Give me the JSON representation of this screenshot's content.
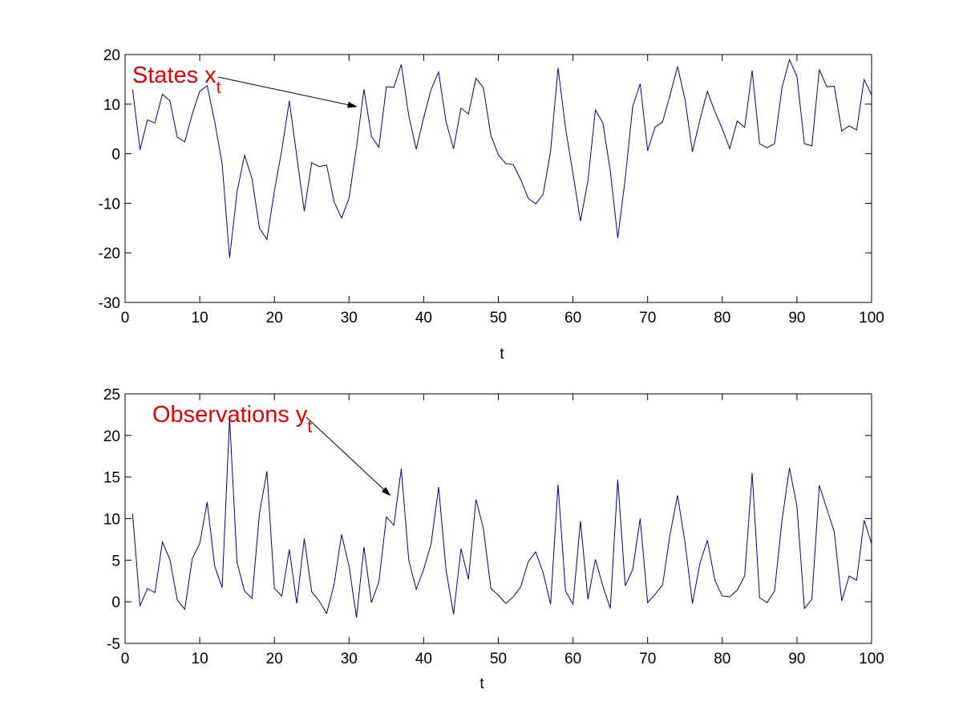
{
  "colors": {
    "line": "#000080",
    "annotation": "#e00000",
    "axes": "#000000",
    "background": "#ffffff"
  },
  "chart_data": [
    {
      "type": "line",
      "xlabel": "t",
      "ylabel": "",
      "xlim": [
        0,
        100
      ],
      "ylim": [
        -30,
        20
      ],
      "xticks": [
        0,
        10,
        20,
        30,
        40,
        50,
        60,
        70,
        80,
        90,
        100
      ],
      "yticks": [
        -30,
        -20,
        -10,
        0,
        10,
        20
      ],
      "grid": false,
      "annotation": {
        "text": "States x",
        "subscript": "t",
        "arrow_to": [
          31,
          9.5
        ]
      },
      "series": [
        {
          "x": [
            1,
            2,
            3,
            4,
            5,
            6,
            7,
            8,
            9,
            10,
            11,
            12,
            13,
            14,
            15,
            16,
            17,
            18,
            19,
            20,
            21,
            22,
            23,
            24,
            25,
            26,
            27,
            28,
            29,
            30,
            31,
            32,
            33,
            34,
            35,
            36,
            37,
            38,
            39,
            40,
            41,
            42,
            43,
            44,
            45,
            46,
            47,
            48,
            49,
            50,
            51,
            52,
            53,
            54,
            55,
            56,
            57,
            58,
            59,
            60,
            61,
            62,
            63,
            64,
            65,
            66,
            67,
            68,
            69,
            70,
            71,
            72,
            73,
            74,
            75,
            76,
            77,
            78,
            79,
            80,
            81,
            82,
            83,
            84,
            85,
            86,
            87,
            88,
            89,
            90,
            91,
            92,
            93,
            94,
            95,
            96,
            97,
            98,
            99,
            100
          ],
          "values": [
            13,
            0.8,
            6.8,
            6.2,
            12,
            10.7,
            3.3,
            2.4,
            8,
            12.6,
            13.7,
            6.5,
            -2,
            -21,
            -7.7,
            -0.3,
            -5,
            -15,
            -17.3,
            -7.5,
            0.8,
            10.7,
            -0.5,
            -11.6,
            -1.8,
            -2.6,
            -2.3,
            -9.7,
            -13,
            -9,
            1.4,
            13,
            3.5,
            1.3,
            13.5,
            13.4,
            18,
            7.7,
            0.9,
            7.3,
            13,
            16.5,
            6.4,
            1,
            9.2,
            8,
            15.2,
            13.3,
            3.7,
            -0.2,
            -2,
            -2.2,
            -5.2,
            -9,
            -10.1,
            -8.2,
            0.5,
            17.3,
            5.2,
            -4,
            -13.6,
            -5.5,
            8.8,
            6.2,
            -3.5,
            -17,
            -5,
            9.5,
            14.1,
            0.6,
            5.4,
            6.4,
            11.8,
            17.6,
            11,
            0.4,
            6.8,
            12.6,
            8.5,
            5,
            1,
            6.6,
            5.3,
            16.8,
            2,
            1.2,
            2,
            13.3,
            19,
            15.6,
            2,
            1.6,
            17,
            13.5,
            13.6,
            4.6,
            5.6,
            4.8,
            15,
            11.8
          ]
        }
      ]
    },
    {
      "type": "line",
      "xlabel": "t",
      "ylabel": "",
      "xlim": [
        0,
        100
      ],
      "ylim": [
        -5,
        25
      ],
      "xticks": [
        0,
        10,
        20,
        30,
        40,
        50,
        60,
        70,
        80,
        90,
        100
      ],
      "yticks": [
        -5,
        0,
        5,
        10,
        15,
        20,
        25
      ],
      "grid": false,
      "annotation": {
        "text": "Observations y",
        "subscript": "t",
        "arrow_to": [
          35.5,
          12.8
        ]
      },
      "series": [
        {
          "x": [
            1,
            2,
            3,
            4,
            5,
            6,
            7,
            8,
            9,
            10,
            11,
            12,
            13,
            14,
            15,
            16,
            17,
            18,
            19,
            20,
            21,
            22,
            23,
            24,
            25,
            26,
            27,
            28,
            29,
            30,
            31,
            32,
            33,
            34,
            35,
            36,
            37,
            38,
            39,
            40,
            41,
            42,
            43,
            44,
            45,
            46,
            47,
            48,
            49,
            50,
            51,
            52,
            53,
            54,
            55,
            56,
            57,
            58,
            59,
            60,
            61,
            62,
            63,
            64,
            65,
            66,
            67,
            68,
            69,
            70,
            71,
            72,
            73,
            74,
            75,
            76,
            77,
            78,
            79,
            80,
            81,
            82,
            83,
            84,
            85,
            86,
            87,
            88,
            89,
            90,
            91,
            92,
            93,
            94,
            95,
            96,
            97,
            98,
            99,
            100
          ],
          "values": [
            10.6,
            -0.5,
            1.6,
            1.1,
            7.2,
            5.1,
            0.2,
            -0.9,
            5.2,
            7,
            12,
            4.3,
            1.7,
            22.1,
            4.7,
            1.3,
            0.4,
            10.6,
            15.7,
            1.6,
            0.7,
            6.3,
            -0.2,
            7.6,
            1.2,
            0.1,
            -1.4,
            2.1,
            8.1,
            4.3,
            -1.9,
            6.6,
            -0.1,
            2.4,
            10.2,
            9.2,
            16,
            5,
            1.5,
            3.9,
            7,
            13.8,
            3.8,
            -1.5,
            6.4,
            2.7,
            12.3,
            8.8,
            1.6,
            0.8,
            -0.2,
            0.6,
            1.8,
            4.8,
            6,
            3.5,
            -0.3,
            14.1,
            1.3,
            -0.3,
            9.7,
            0.3,
            5.1,
            1.9,
            -0.8,
            14.7,
            1.9,
            3.9,
            10,
            -0.1,
            0.9,
            2,
            8.1,
            12.8,
            7.2,
            -0.2,
            4.6,
            7.4,
            2.6,
            0.7,
            0.6,
            1.4,
            3.1,
            15.5,
            0.5,
            -0.1,
            1.3,
            9.8,
            16.1,
            11.5,
            -0.8,
            0.3,
            14,
            11.2,
            8.4,
            0.1,
            3.1,
            2.6,
            9.8,
            7
          ]
        }
      ]
    }
  ]
}
